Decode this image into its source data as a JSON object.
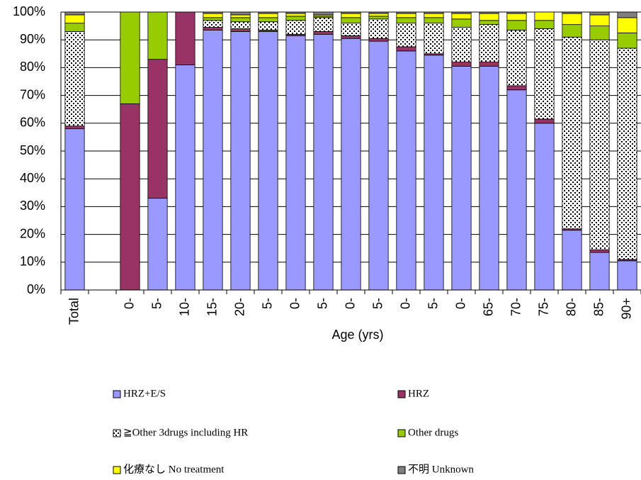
{
  "chart_data": {
    "type": "stacked-bar",
    "x_label": "Age (yrs)",
    "categories": [
      "Total",
      null,
      "0-",
      "5-",
      "10-",
      "15-",
      "20-",
      "5-",
      "0-",
      "5-",
      "0-",
      "5-",
      "0-",
      "5-",
      "0-",
      "65-",
      "70-",
      "75-",
      "80-",
      "85-",
      "90+"
    ],
    "series": [
      {
        "name": "HRZ+E/S",
        "color": "#9999ff",
        "values": [
          58,
          null,
          0,
          33,
          81,
          93.5,
          93,
          93,
          91.5,
          92,
          90.5,
          89.5,
          86,
          84.5,
          80.5,
          80.5,
          72,
          60,
          21.5,
          13.5,
          10.5
        ]
      },
      {
        "name": "HRZ",
        "color": "#993366",
        "values": [
          1,
          null,
          67,
          50,
          19,
          1,
          1,
          0.5,
          0.5,
          1,
          1,
          1,
          1.5,
          0.5,
          1.5,
          1.5,
          1.5,
          1.5,
          0.5,
          1,
          0.5
        ]
      },
      {
        "name": "≧Other 3drugs including HR",
        "color": "#ffffff",
        "pattern": "dots",
        "values": [
          34,
          null,
          0,
          0,
          0,
          2.5,
          2.5,
          3,
          5,
          5,
          4.5,
          7,
          8.5,
          11,
          12.5,
          13.5,
          20,
          32.5,
          69,
          75.5,
          76
        ]
      },
      {
        "name": "Other drugs",
        "color": "#99cc00",
        "values": [
          3,
          null,
          33,
          17,
          0,
          1,
          1.5,
          1.5,
          1.5,
          0.5,
          2,
          1,
          2,
          2,
          3,
          1.5,
          3.5,
          3,
          4.5,
          5,
          5.5
        ]
      },
      {
        "name": "化療なし No treatment",
        "color": "#ffff00",
        "values": [
          3,
          null,
          0,
          0,
          0,
          1.5,
          1,
          1.5,
          1,
          0.5,
          1.5,
          1,
          1.5,
          1.5,
          2,
          2.5,
          2.5,
          3,
          4,
          4,
          5.5
        ]
      },
      {
        "name": "不明 Unknown",
        "color": "#808080",
        "values": [
          1,
          null,
          0,
          0,
          0,
          0.5,
          1,
          0.5,
          0.5,
          1,
          0.5,
          0.5,
          0.5,
          0.5,
          0.5,
          0.5,
          0.5,
          0,
          0.5,
          1,
          2
        ]
      }
    ],
    "ylim": [
      0,
      100
    ],
    "yticks": [
      {
        "value": 0,
        "label": "0%"
      },
      {
        "value": 10,
        "label": "10%"
      },
      {
        "value": 20,
        "label": "20%"
      },
      {
        "value": 30,
        "label": "30%"
      },
      {
        "value": 40,
        "label": "40%"
      },
      {
        "value": 50,
        "label": "50%"
      },
      {
        "value": 60,
        "label": "60%"
      },
      {
        "value": 70,
        "label": "70%"
      },
      {
        "value": 80,
        "label": "80%"
      },
      {
        "value": 90,
        "label": "90%"
      },
      {
        "value": 100,
        "label": "100%"
      }
    ],
    "grid": true
  }
}
